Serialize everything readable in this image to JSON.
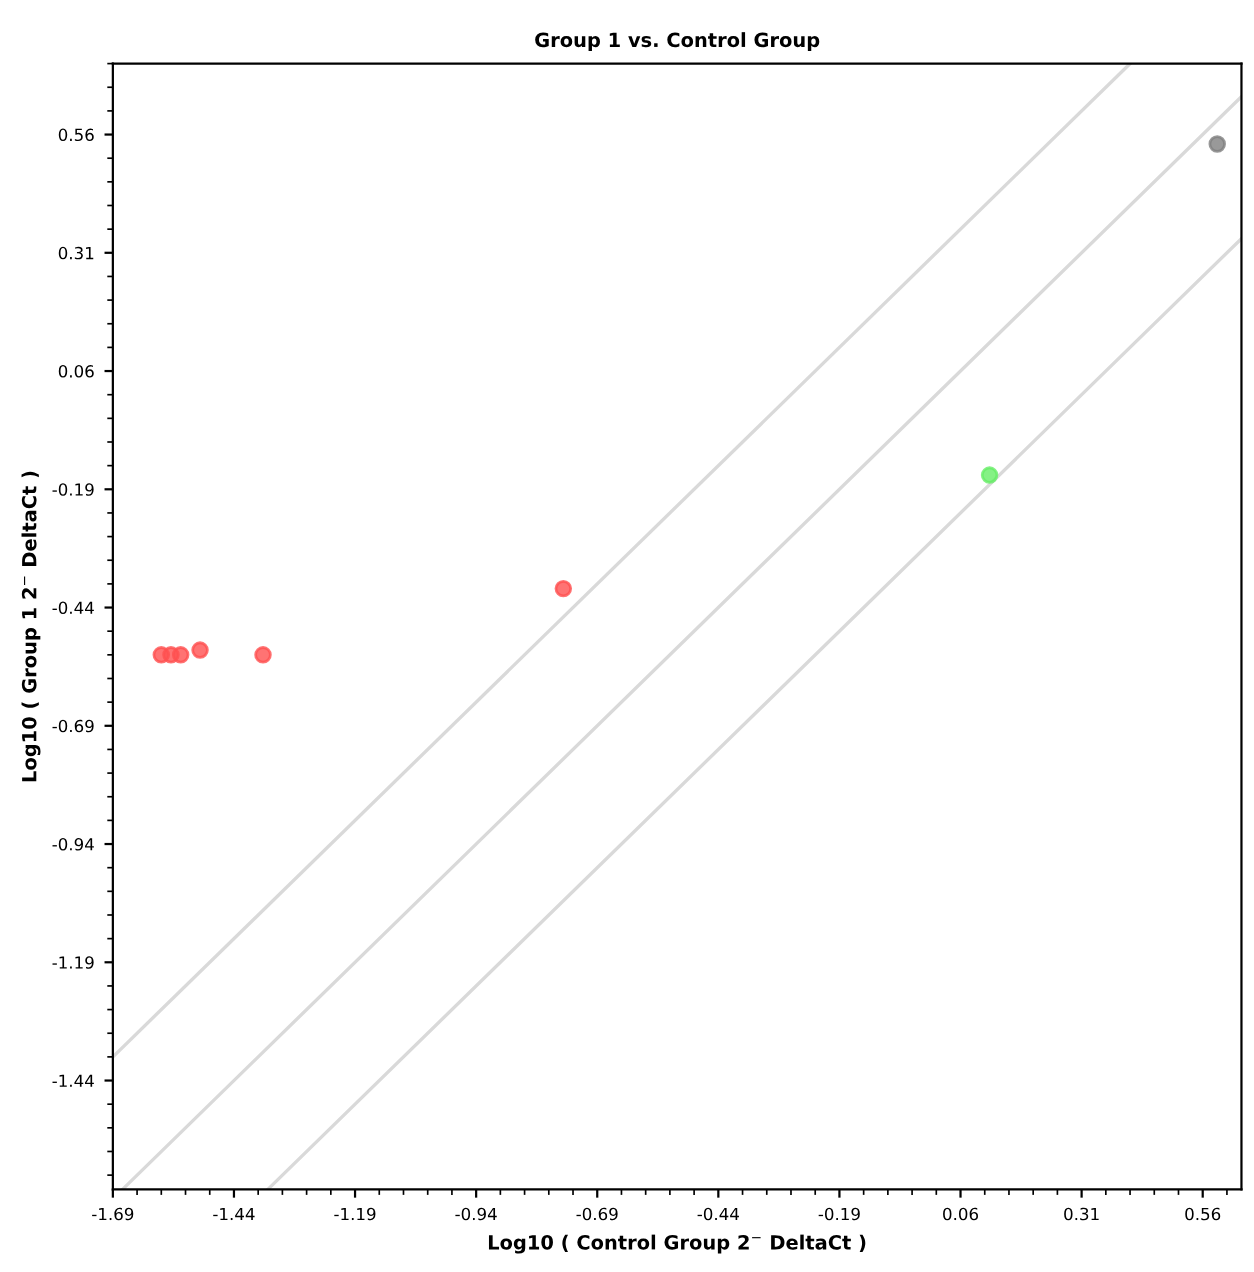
{
  "chart_data": {
    "type": "scatter",
    "title": "Group 1 vs. Control Group",
    "xlabel": "Log10 ( Control Group 2$^{−}$ DeltaCt )",
    "ylabel": "Log10 ( Group 1 2$^{−}$ DeltaCt )",
    "series": [
      {
        "type": "line",
        "marker": "none",
        "color": "#d9d9d9",
        "x": [
          -1.69,
          0.41
        ],
        "values": [
          -1.39,
          0.71
        ]
      },
      {
        "type": "line",
        "marker": "none",
        "color": "#d9d9d9",
        "x": [
          -1.67,
          0.64
        ],
        "values": [
          -1.67,
          0.64
        ]
      },
      {
        "type": "line",
        "marker": "none",
        "color": "#d9d9d9",
        "x": [
          -1.37,
          0.64
        ],
        "values": [
          -1.67,
          0.34
        ]
      },
      {
        "color": "#ff5050",
        "x": [
          -1.59,
          -1.57,
          -1.55,
          -1.51,
          -1.38,
          -0.76
        ],
        "values": [
          -0.54,
          -0.54,
          -0.54,
          -0.53,
          -0.54,
          -0.4
        ]
      },
      {
        "color": "#808080",
        "x": [
          0.59
        ],
        "values": [
          0.54
        ]
      },
      {
        "color": "#66ee66",
        "x": [
          0.12
        ],
        "values": [
          -0.16
        ]
      }
    ],
    "xlim": [
      -1.69,
      0.64
    ],
    "ylim": [
      -1.67,
      0.71
    ],
    "xticks": [
      -1.69,
      -1.44,
      -1.19,
      -0.94,
      -0.69,
      -0.44,
      -0.19,
      0.06,
      0.31,
      0.56
    ],
    "yticks": [
      -1.44,
      -1.19,
      -0.94,
      -0.69,
      -0.44,
      -0.19,
      0.06,
      0.31,
      0.56
    ],
    "marker": "circle",
    "grid": false,
    "legend": false
  }
}
